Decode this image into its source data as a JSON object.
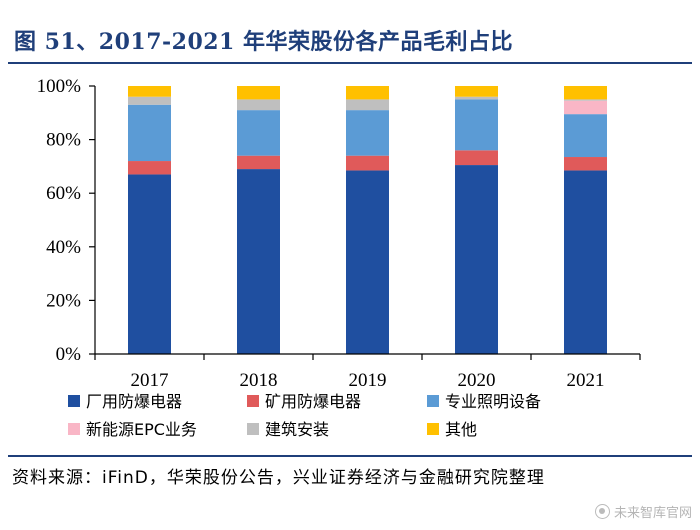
{
  "title": "图 51、2017-2021 年华荣股份各产品毛利占比",
  "source": "资料来源：iFinD，华荣股份公告，兴业证券经济与金融研究院整理",
  "watermark": "未来智库官网",
  "chart_data": {
    "type": "bar",
    "stacked": true,
    "categories": [
      "2017",
      "2018",
      "2019",
      "2020",
      "2021"
    ],
    "ylim": [
      0,
      100
    ],
    "yticks": [
      "0%",
      "20%",
      "40%",
      "60%",
      "80%",
      "100%"
    ],
    "legend_position": "bottom",
    "grid": false,
    "series": [
      {
        "name": "厂用防爆电器",
        "color": "#1f4fa0",
        "values": [
          67,
          69,
          68.5,
          70.5,
          68.5
        ]
      },
      {
        "name": "矿用防爆电器",
        "color": "#e05a5a",
        "values": [
          5,
          5,
          5.5,
          5.5,
          5
        ]
      },
      {
        "name": "专业照明设备",
        "color": "#5b9bd5",
        "values": [
          21,
          17,
          17,
          19,
          16
        ]
      },
      {
        "name": "新能源EPC业务",
        "color": "#f9b6c6",
        "values": [
          0,
          0,
          0,
          0,
          5
        ]
      },
      {
        "name": "建筑安装",
        "color": "#bfbfbf",
        "values": [
          3,
          4,
          4,
          1,
          0.5
        ]
      },
      {
        "name": "其他",
        "color": "#ffc000",
        "values": [
          4,
          5,
          5,
          4,
          5
        ]
      }
    ]
  }
}
